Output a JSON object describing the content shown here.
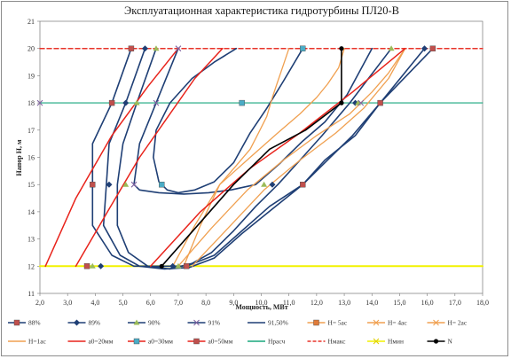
{
  "chart_data": {
    "type": "line",
    "title": "Эксплуатационная характеристика гидротурбины ПЛ20-В",
    "xlabel": "Мощность, МВт",
    "ylabel": "Напор Н, м",
    "xlim": [
      2,
      18
    ],
    "ylim": [
      11,
      21
    ],
    "x_ticks": [
      "2,0",
      "3,0",
      "4,0",
      "5,0",
      "6,0",
      "7,0",
      "8,0",
      "9,0",
      "10,0",
      "11,0",
      "12,0",
      "13,0",
      "14,0",
      "15,0",
      "16,0",
      "17,0",
      "18,0"
    ],
    "y_ticks": [
      "11",
      "12",
      "13",
      "14",
      "15",
      "16",
      "17",
      "18",
      "19",
      "20",
      "21"
    ],
    "grid": false,
    "legend_position": "bottom",
    "colors": {
      "efficiency": "#1f3f75",
      "series_88": "#c0504d",
      "series_89": "#4f81bd",
      "series_90": "#9bbb59",
      "series_91": "#8064a2",
      "series_9150": "#4bacc6",
      "h_max": "#e8342a",
      "design": "#18a77d",
      "h_min": "#f2f200",
      "n_curve": "#000000",
      "opening": "#f0a050",
      "red_line": "#e8231b"
    },
    "series": [
      {
        "name": "88%",
        "color": "#c0504d",
        "x": [
          5.3,
          4.6,
          3.9,
          3.9,
          3.9,
          4.6,
          5.4,
          6.5,
          7.3,
          8.3,
          9.3,
          10.3,
          11.5,
          12.3,
          13.3,
          14.3,
          16.2
        ],
        "y": [
          20,
          18,
          16.5,
          15,
          13.5,
          12.4,
          12,
          12,
          12,
          12.4,
          13.3,
          14.2,
          15,
          15.8,
          16.8,
          18,
          20
        ]
      },
      {
        "name": "89%",
        "color": "#4f81bd",
        "x": [
          5.8,
          5.1,
          4.5,
          4.4,
          4.3,
          4.9,
          5.6,
          6.5,
          7.4,
          8.3,
          9.3,
          10.4,
          11.5,
          12.3,
          13.4,
          14.3,
          15.9
        ],
        "y": [
          20,
          18,
          16.5,
          15,
          13.5,
          12.4,
          12,
          11.9,
          11.95,
          12.3,
          13.2,
          14.1,
          15,
          15.9,
          16.8,
          18,
          20
        ]
      },
      {
        "name": "90%",
        "color": "#9bbb59",
        "x": [
          6.2,
          5.5,
          5.0,
          4.8,
          4.8,
          5.2,
          5.9,
          6.7,
          7.5,
          8.2,
          9.0,
          9.8,
          10.6,
          11.4,
          12.2,
          13.2,
          14.7
        ],
        "y": [
          20,
          18,
          16.5,
          15,
          13.5,
          12.5,
          12,
          11.9,
          12.1,
          12.5,
          13.3,
          14.2,
          15,
          15.9,
          16.8,
          18,
          20
        ]
      },
      {
        "name": "91%",
        "color": "#8064a2",
        "x": [
          7.0,
          6.2,
          5.6,
          5.4,
          5.6,
          6.3,
          7.2,
          8.1,
          8.9,
          9.8,
          10.7,
          11.5,
          12.3,
          13.1,
          14.0
        ],
        "y": [
          20,
          18,
          16.5,
          15,
          14.8,
          14.7,
          14.65,
          14.7,
          14.8,
          15,
          15.8,
          16.6,
          17.3,
          18.3,
          20
        ]
      },
      {
        "name": "91,50%",
        "color": "#4bacc6",
        "x": [
          11.5,
          10.8,
          10.2,
          9.6,
          9.0,
          8.3,
          7.6,
          7.0,
          6.6,
          6.3,
          6.1,
          6.2,
          6.7,
          7.5,
          8.3,
          9.1
        ],
        "y": [
          20,
          18.8,
          17.8,
          16.9,
          15.8,
          15.1,
          14.8,
          14.7,
          14.8,
          15.1,
          16.0,
          17.0,
          18.0,
          18.9,
          19.5,
          20
        ]
      },
      {
        "name": "Н= 5ac",
        "color": "#f0a050",
        "x": [
          7.2,
          7.8,
          8.5,
          9.1,
          9.6,
          9.9,
          10.2,
          10.4,
          10.6,
          10.8,
          11.0
        ],
        "y": [
          12,
          13.5,
          15,
          15.7,
          16.3,
          16.9,
          17.5,
          18.2,
          18.8,
          19.4,
          20
        ]
      },
      {
        "name": "Н= 4ac",
        "color": "#f0a050",
        "x": [
          6.8,
          7.6,
          8.5,
          9.6,
          10.6,
          11.4,
          12.0,
          12.4,
          12.8,
          13.0
        ],
        "y": [
          12,
          13.5,
          15,
          16.0,
          16.9,
          17.6,
          18.2,
          18.7,
          19.3,
          20
        ]
      },
      {
        "name": "Н= 2ac",
        "color": "#f0a050",
        "x": [
          7.0,
          8.2,
          9.5,
          10.8,
          12.0,
          13.2,
          14.0,
          14.6,
          15.2
        ],
        "y": [
          12,
          13.4,
          14.8,
          15.9,
          16.8,
          17.6,
          18.4,
          19.1,
          20
        ]
      },
      {
        "name": "Н=1ac",
        "color": "#f0a050",
        "x": [
          7.5,
          8.8,
          10.1,
          11.4,
          12.7,
          13.7,
          14.6,
          15.2
        ],
        "y": [
          12,
          13.4,
          14.8,
          15.9,
          16.9,
          17.8,
          18.9,
          20
        ]
      },
      {
        "name": "a0=20мм",
        "color": "#e8231b",
        "x": [
          3.3,
          4.5,
          5.6,
          6.7,
          7.6,
          8.6
        ],
        "y": [
          12,
          14.1,
          16.0,
          17.6,
          18.9,
          20
        ]
      },
      {
        "name": "a0=30мм",
        "color": "#e8231b",
        "x": [
          2.2,
          3.3,
          4.6,
          5.9,
          7.0
        ],
        "y": [
          12,
          14.5,
          16.8,
          18.6,
          20
        ]
      },
      {
        "name": "a0=50мм",
        "color": "#e8231b",
        "x": [
          6.0,
          7.8,
          9.6,
          11.4,
          13.3,
          15.2
        ],
        "y": [
          12,
          14.0,
          15.6,
          16.9,
          18.4,
          20
        ]
      },
      {
        "name": "Нрасч",
        "color": "#18a77d",
        "x": [
          2.0,
          18.0
        ],
        "y": [
          18,
          18
        ]
      },
      {
        "name": "Нмакс",
        "color": "#e8342a",
        "x": [
          2.0,
          18.0
        ],
        "y": [
          20,
          20
        ]
      },
      {
        "name": "Нмин",
        "color": "#f2f200",
        "x": [
          2.0,
          18.0
        ],
        "y": [
          12,
          12
        ]
      },
      {
        "name": "N",
        "color": "#000000",
        "x": [
          6.4,
          7.7,
          9.0,
          10.3,
          11.6,
          12.9,
          12.9
        ],
        "y": [
          12,
          13.5,
          15.0,
          16.3,
          17.0,
          18.0,
          20.0
        ]
      }
    ],
    "markers": [
      {
        "series": "88%",
        "x": [
          5.3,
          4.6,
          3.9,
          3.7,
          7.3,
          11.5,
          14.3,
          16.2
        ],
        "y": [
          20,
          18,
          15,
          12,
          12,
          15,
          18,
          20
        ]
      },
      {
        "series": "89%",
        "x": [
          5.8,
          5.1,
          4.5,
          4.2,
          6.8,
          10.4,
          13.4,
          15.9
        ],
        "y": [
          20,
          18,
          15,
          12,
          12,
          15,
          18,
          20
        ]
      },
      {
        "series": "90%",
        "x": [
          6.2,
          5.5,
          5.1,
          3.9,
          7.0,
          10.1,
          13.5,
          14.7
        ],
        "y": [
          20,
          18,
          15,
          12,
          12,
          15,
          18,
          20
        ]
      },
      {
        "series": "91%",
        "x": [
          7.0,
          6.2,
          5.4,
          13.6,
          2.0
        ],
        "y": [
          20,
          18,
          15,
          18,
          18
        ]
      },
      {
        "series": "91,50%",
        "x": [
          11.5,
          9.3,
          6.4
        ],
        "y": [
          20,
          18,
          15
        ]
      }
    ],
    "legend": [
      "88%",
      "89%",
      "90%",
      "91%",
      "91,50%",
      "Н= 5ac",
      "Н= 4ac",
      "Н= 2ac",
      "Н=1ac",
      "a0=20мм",
      "a0=30мм",
      "a0=50мм",
      "Нрасч",
      "Нмакс",
      "Нмин",
      "N"
    ]
  }
}
